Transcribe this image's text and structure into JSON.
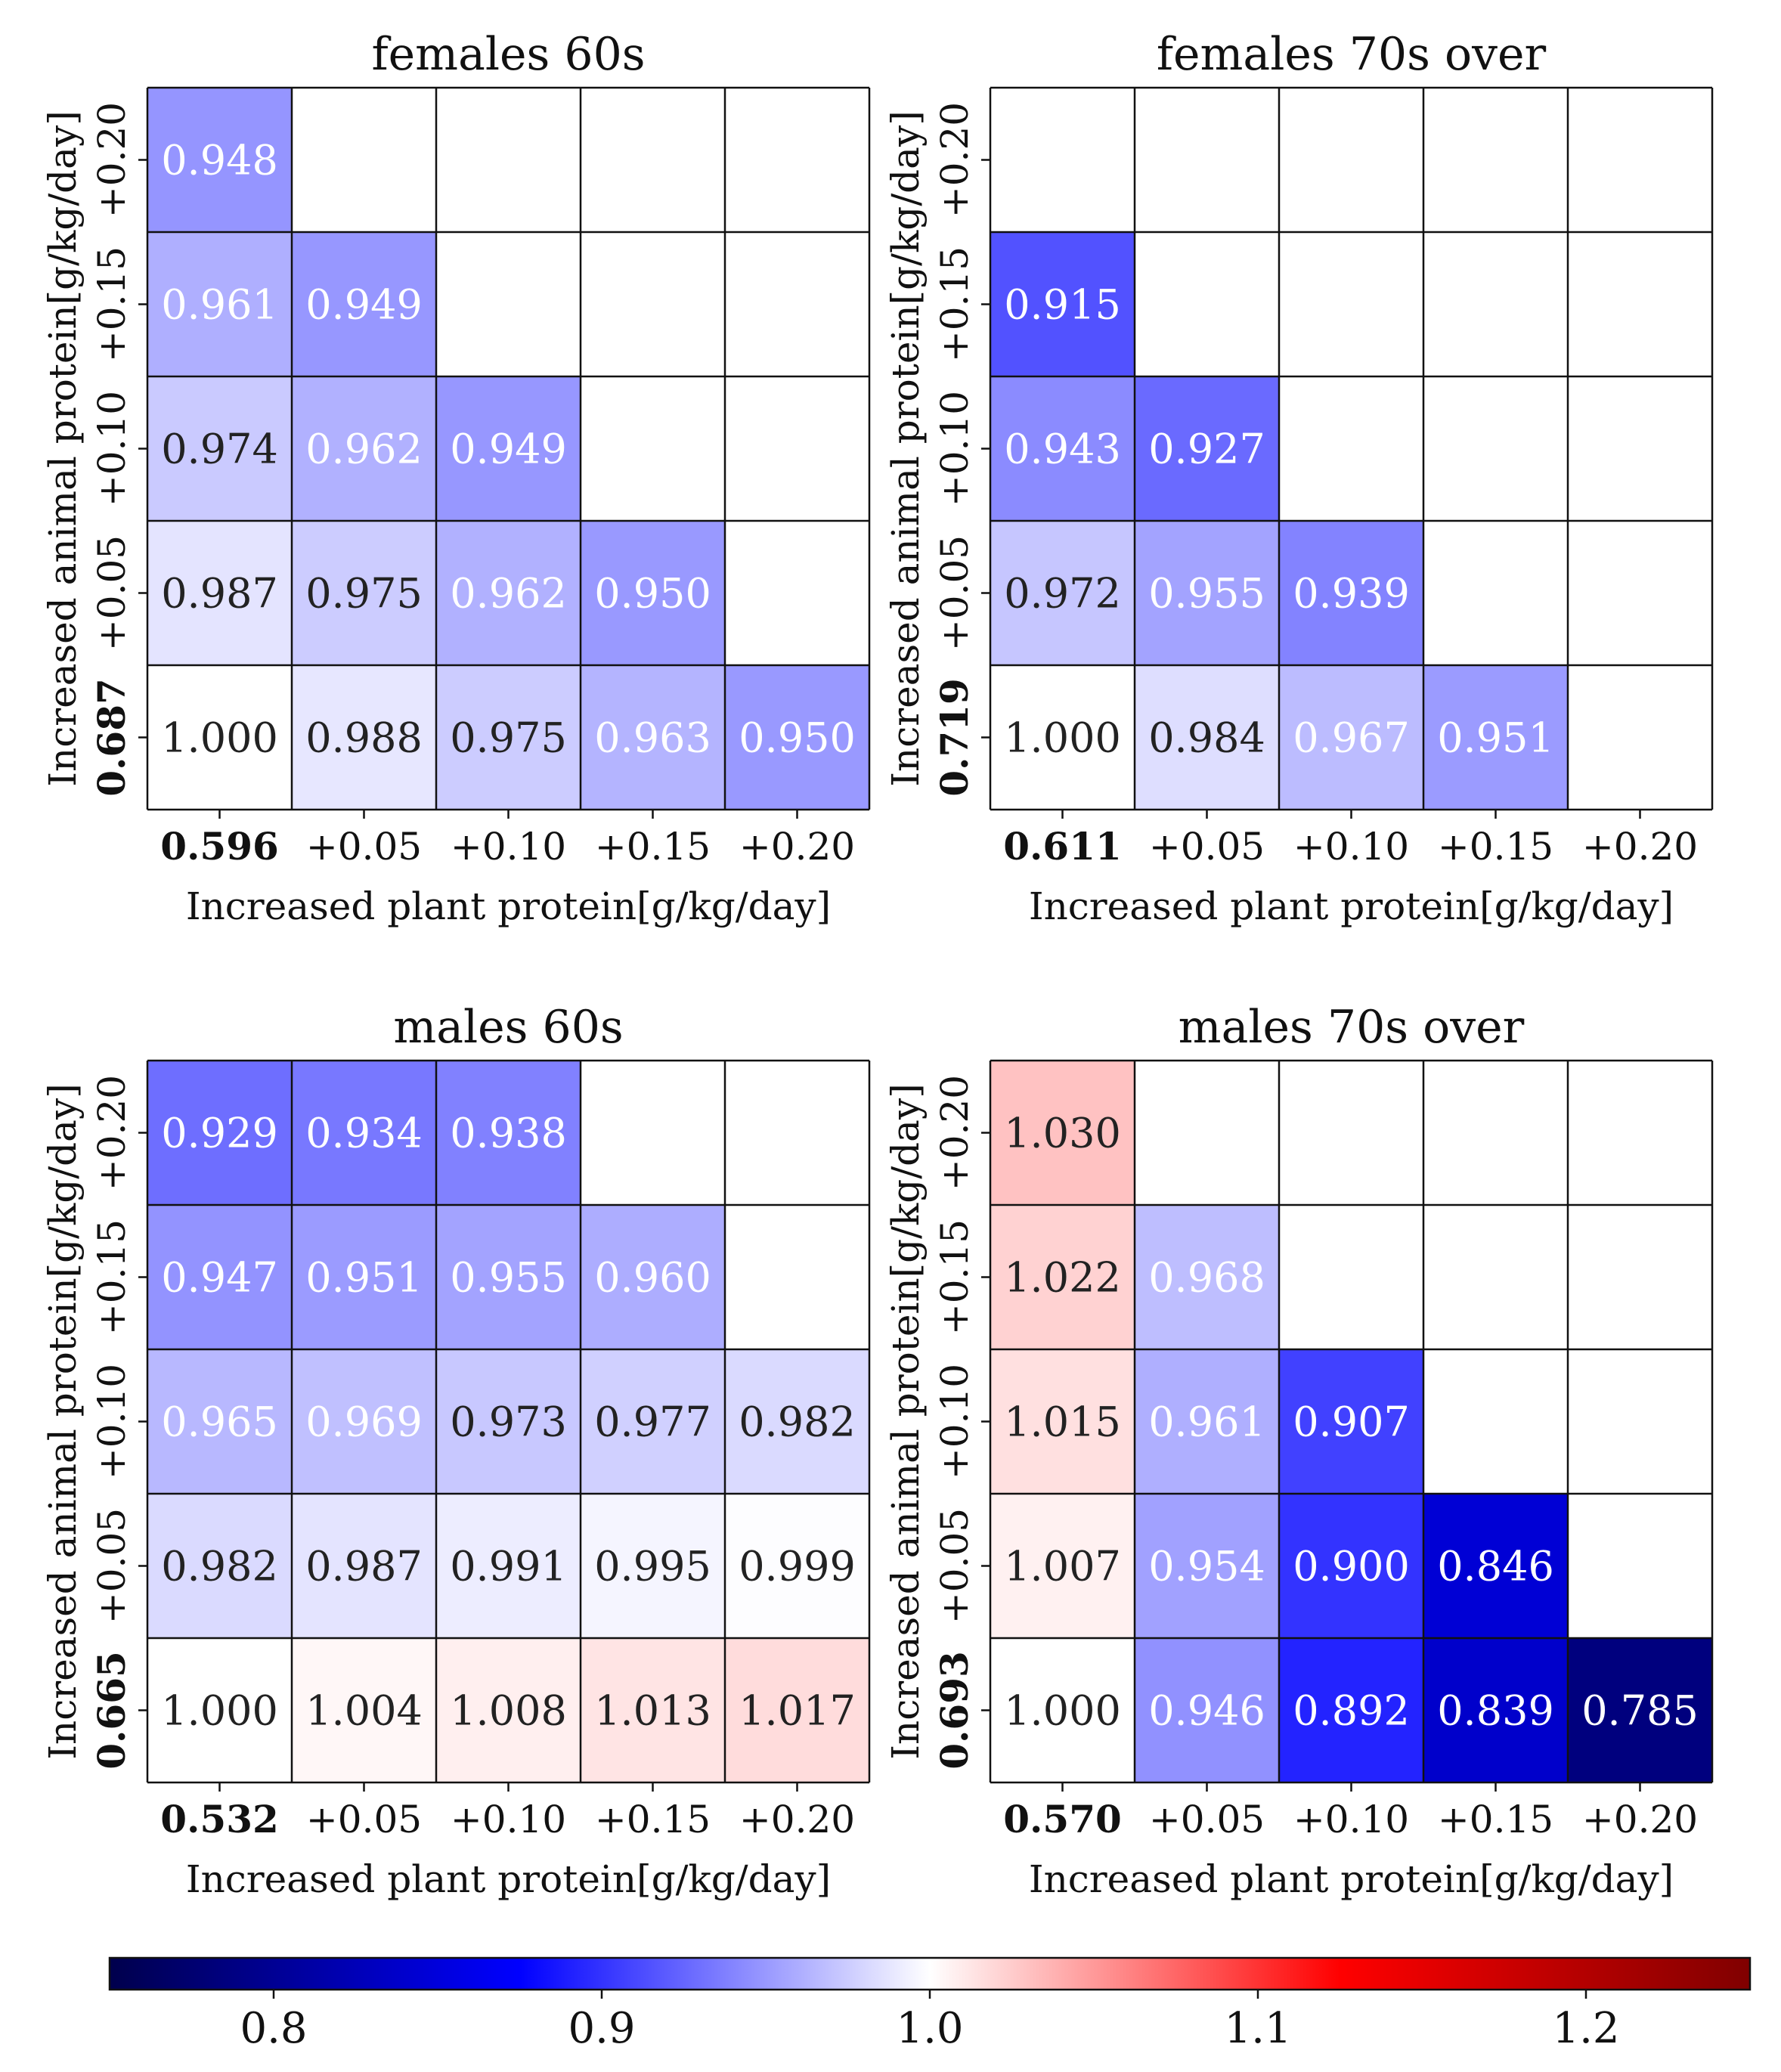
{
  "chart_data": [
    {
      "type": "heatmap",
      "title": "females 60s",
      "xlabel": "Increased plant protein[g/kg/day]",
      "ylabel": "Increased animal protein[g/kg/day]",
      "x_ticks": [
        "0.596",
        "+0.05",
        "+0.10",
        "+0.15",
        "+0.20"
      ],
      "y_ticks": [
        "0.687",
        "+0.05",
        "+0.10",
        "+0.15",
        "+0.20"
      ],
      "grid": [
        [
          1.0,
          0.988,
          0.975,
          0.963,
          0.95
        ],
        [
          0.987,
          0.975,
          0.962,
          0.95,
          null
        ],
        [
          0.974,
          0.962,
          0.949,
          null,
          null
        ],
        [
          0.961,
          0.949,
          null,
          null,
          null
        ],
        [
          0.948,
          null,
          null,
          null,
          null
        ]
      ]
    },
    {
      "type": "heatmap",
      "title": "females 70s over",
      "xlabel": "Increased plant protein[g/kg/day]",
      "ylabel": "Increased animal protein[g/kg/day]",
      "x_ticks": [
        "0.611",
        "+0.05",
        "+0.10",
        "+0.15",
        "+0.20"
      ],
      "y_ticks": [
        "0.719",
        "+0.05",
        "+0.10",
        "+0.15",
        "+0.20"
      ],
      "grid": [
        [
          1.0,
          0.984,
          0.967,
          0.951,
          null
        ],
        [
          0.972,
          0.955,
          0.939,
          null,
          null
        ],
        [
          0.943,
          0.927,
          null,
          null,
          null
        ],
        [
          0.915,
          null,
          null,
          null,
          null
        ],
        [
          null,
          null,
          null,
          null,
          null
        ]
      ]
    },
    {
      "type": "heatmap",
      "title": "males 60s",
      "xlabel": "Increased plant protein[g/kg/day]",
      "ylabel": "Increased animal protein[g/kg/day]",
      "x_ticks": [
        "0.532",
        "+0.05",
        "+0.10",
        "+0.15",
        "+0.20"
      ],
      "y_ticks": [
        "0.665",
        "+0.05",
        "+0.10",
        "+0.15",
        "+0.20"
      ],
      "grid": [
        [
          1.0,
          1.004,
          1.008,
          1.013,
          1.017
        ],
        [
          0.982,
          0.987,
          0.991,
          0.995,
          0.999
        ],
        [
          0.965,
          0.969,
          0.973,
          0.977,
          0.982
        ],
        [
          0.947,
          0.951,
          0.955,
          0.96,
          null
        ],
        [
          0.929,
          0.934,
          0.938,
          null,
          null
        ]
      ]
    },
    {
      "type": "heatmap",
      "title": "males 70s over",
      "xlabel": "Increased plant protein[g/kg/day]",
      "ylabel": "Increased animal protein[g/kg/day]",
      "x_ticks": [
        "0.570",
        "+0.05",
        "+0.10",
        "+0.15",
        "+0.20"
      ],
      "y_ticks": [
        "0.693",
        "+0.05",
        "+0.10",
        "+0.15",
        "+0.20"
      ],
      "grid": [
        [
          1.0,
          0.946,
          0.892,
          0.839,
          0.785
        ],
        [
          1.007,
          0.954,
          0.9,
          0.846,
          null
        ],
        [
          1.015,
          0.961,
          0.907,
          null,
          null
        ],
        [
          1.022,
          0.968,
          null,
          null,
          null
        ],
        [
          1.03,
          null,
          null,
          null,
          null
        ]
      ]
    }
  ],
  "colorbar": {
    "vmin": 0.75,
    "vmax": 1.25,
    "ticks": [
      0.8,
      0.9,
      1.0,
      1.1,
      1.2
    ],
    "tick_labels": [
      "0.8",
      "0.9",
      "1.0",
      "1.1",
      "1.2"
    ],
    "colormap": "seismic",
    "colors": [
      "#00004c",
      "#0000ff",
      "#ffffff",
      "#ff0000",
      "#800000"
    ]
  }
}
